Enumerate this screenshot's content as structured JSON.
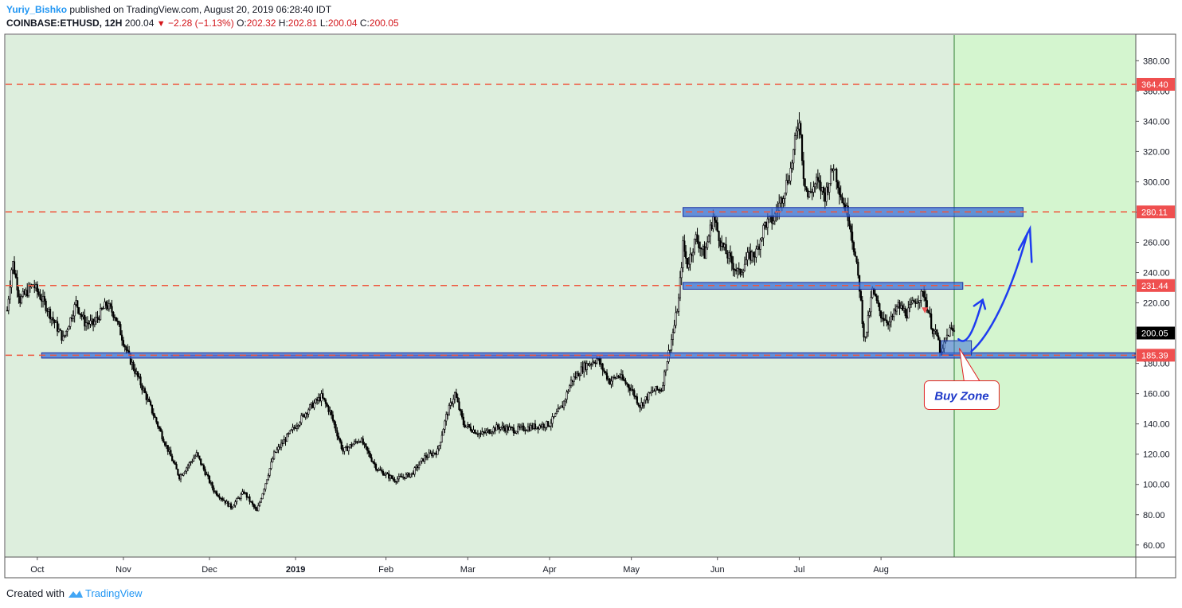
{
  "header": {
    "author": "Yuriy_Bishko",
    "published": "published on TradingView.com, August 20, 2019 06:28:40 IDT"
  },
  "symbol": {
    "name": "COINBASE:ETHUSD, 12H",
    "last": "200.04",
    "change": "−2.28 (−1.13%)",
    "o_label": "O:",
    "o": "202.32",
    "h_label": "H:",
    "h": "202.81",
    "l_label": "L:",
    "l": "200.04",
    "c_label": "C:",
    "c": "200.05"
  },
  "footer": {
    "created": "Created with",
    "brand": "TradingView"
  },
  "colors": {
    "bg": "#ddeedd",
    "future_bg": "#d4f5cf",
    "candle": "#000000",
    "level_line": "#f0553c",
    "zone_fill": "#3b6fd6",
    "zone_border": "#1a2fa0",
    "label_red": "#ef4f4f",
    "arrow": "#1e3cf0",
    "callout_border": "#e02020",
    "callout_text": "#1d38c9",
    "vline": "#2e7d32"
  },
  "chart_data": {
    "type": "candlestick",
    "x_axis_labels": [
      "Oct",
      "Nov",
      "Dec",
      "2019",
      "Feb",
      "Mar",
      "Apr",
      "May",
      "Jun",
      "Jul",
      "Aug"
    ],
    "y_ticks": [
      60,
      80,
      100,
      120,
      140,
      160,
      180,
      200,
      220,
      240,
      260,
      280,
      300,
      320,
      340,
      360,
      380
    ],
    "ylim": [
      52,
      397
    ],
    "price_path": [
      [
        0,
        215
      ],
      [
        0.6,
        248
      ],
      [
        1.5,
        222
      ],
      [
        3,
        232
      ],
      [
        4.5,
        218
      ],
      [
        6.5,
        196
      ],
      [
        8,
        220
      ],
      [
        9,
        207
      ],
      [
        10,
        206
      ],
      [
        11.5,
        219
      ],
      [
        12.5,
        212
      ],
      [
        14,
        186
      ],
      [
        16,
        160
      ],
      [
        18,
        132
      ],
      [
        20,
        105
      ],
      [
        22,
        120
      ],
      [
        24,
        96
      ],
      [
        26,
        85
      ],
      [
        27.5,
        95
      ],
      [
        29,
        82
      ],
      [
        31,
        120
      ],
      [
        33,
        135
      ],
      [
        35,
        150
      ],
      [
        36.5,
        158
      ],
      [
        37.5,
        148
      ],
      [
        39,
        122
      ],
      [
        41,
        130
      ],
      [
        43,
        110
      ],
      [
        45,
        103
      ],
      [
        47,
        107
      ],
      [
        48.5,
        118
      ],
      [
        50,
        122
      ],
      [
        51,
        145
      ],
      [
        52,
        160
      ],
      [
        53,
        140
      ],
      [
        55,
        133
      ],
      [
        57,
        138
      ],
      [
        59,
        136
      ],
      [
        61,
        138
      ],
      [
        63,
        140
      ],
      [
        64.5,
        152
      ],
      [
        65.5,
        168
      ],
      [
        67,
        178
      ],
      [
        68.5,
        183
      ],
      [
        70,
        168
      ],
      [
        71,
        172
      ],
      [
        72.5,
        163
      ],
      [
        73.5,
        152
      ],
      [
        75,
        162
      ],
      [
        76,
        163
      ],
      [
        76.5,
        178
      ],
      [
        77.5,
        205
      ],
      [
        78,
        222
      ],
      [
        78.5,
        258
      ],
      [
        79,
        245
      ],
      [
        80,
        263
      ],
      [
        81,
        252
      ],
      [
        82,
        277
      ],
      [
        83,
        258
      ],
      [
        84,
        248
      ],
      [
        85,
        239
      ],
      [
        86,
        250
      ],
      [
        87,
        253
      ],
      [
        88,
        272
      ],
      [
        89,
        275
      ],
      [
        90,
        290
      ],
      [
        91,
        308
      ],
      [
        92,
        343
      ],
      [
        92.5,
        305
      ],
      [
        93,
        290
      ],
      [
        94,
        300
      ],
      [
        95,
        291
      ],
      [
        96,
        311
      ],
      [
        97,
        288
      ],
      [
        97.8,
        276
      ],
      [
        98.3,
        258
      ],
      [
        99,
        230
      ],
      [
        99.6,
        193
      ],
      [
        100.5,
        228
      ],
      [
        101.5,
        212
      ],
      [
        102.5,
        207
      ],
      [
        103.5,
        218
      ],
      [
        104.5,
        213
      ],
      [
        105.5,
        222
      ],
      [
        106.5,
        226
      ],
      [
        107.5,
        202
      ],
      [
        108,
        198
      ],
      [
        108.5,
        185
      ],
      [
        109,
        196
      ],
      [
        109.5,
        202
      ],
      [
        110,
        201
      ]
    ],
    "last_bar_index": 110,
    "future_bars": 20,
    "horizontal_levels": [
      {
        "price": 364.4,
        "label": "364.40"
      },
      {
        "price": 280.11,
        "label": "280.11"
      },
      {
        "price": 231.44,
        "label": "231.44"
      },
      {
        "price": 185.39,
        "label": "185.39"
      }
    ],
    "current_price": {
      "price": 200.05,
      "label": "200.05"
    },
    "zones": [
      {
        "from": 78.5,
        "to": 118,
        "low": 277,
        "high": 283
      },
      {
        "from": 78.5,
        "to": 111,
        "low": 229,
        "high": 233.5
      },
      {
        "from": 4,
        "to": 131,
        "low": 183.5,
        "high": 187
      },
      {
        "from": 108.5,
        "to": 112,
        "low": 185.5,
        "high": 195
      }
    ],
    "pink_segment": {
      "from": 19,
      "to": 77,
      "price": 185.2
    },
    "annotation": "Buy Zone"
  }
}
